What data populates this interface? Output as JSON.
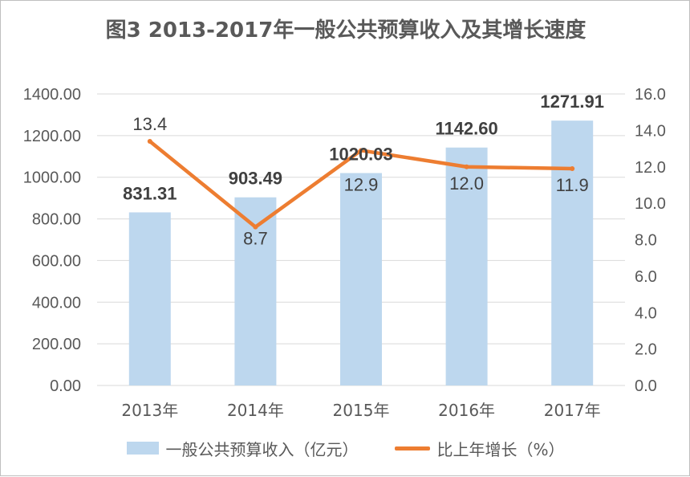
{
  "title": "图3  2013-2017年一般公共预算收入及其增长速度",
  "colors": {
    "bar": "#bdd7ee",
    "line": "#ed7d31",
    "grid": "#d9d9d9",
    "text": "#595959",
    "label": "#404040"
  },
  "legend": {
    "bar_label": "一般公共预算收入（亿元）",
    "line_label": "比上年增长（%）"
  },
  "chart_data": {
    "type": "bar+line",
    "categories": [
      "2013年",
      "2014年",
      "2015年",
      "2016年",
      "2017年"
    ],
    "series": [
      {
        "name": "一般公共预算收入（亿元）",
        "type": "bar",
        "axis": "left",
        "values": [
          831.31,
          903.49,
          1020.03,
          1142.6,
          1271.91
        ],
        "labels": [
          "831.31",
          "903.49",
          "1020.03",
          "1142.60",
          "1271.91"
        ]
      },
      {
        "name": "比上年增长（%）",
        "type": "line",
        "axis": "right",
        "values": [
          13.4,
          8.7,
          12.9,
          12.0,
          11.9
        ],
        "labels": [
          "13.4",
          "8.7",
          "12.9",
          "12.0",
          "11.9"
        ]
      }
    ],
    "y_left": {
      "min": 0,
      "max": 1400,
      "step": 200,
      "ticks": [
        "0.00",
        "200.00",
        "400.00",
        "600.00",
        "800.00",
        "1000.00",
        "1200.00",
        "1400.00"
      ]
    },
    "y_right": {
      "min": 0,
      "max": 16,
      "step": 2,
      "ticks": [
        "0.0",
        "2.0",
        "4.0",
        "6.0",
        "8.0",
        "10.0",
        "12.0",
        "14.0",
        "16.0"
      ]
    },
    "grid": true,
    "legend_position": "bottom"
  }
}
